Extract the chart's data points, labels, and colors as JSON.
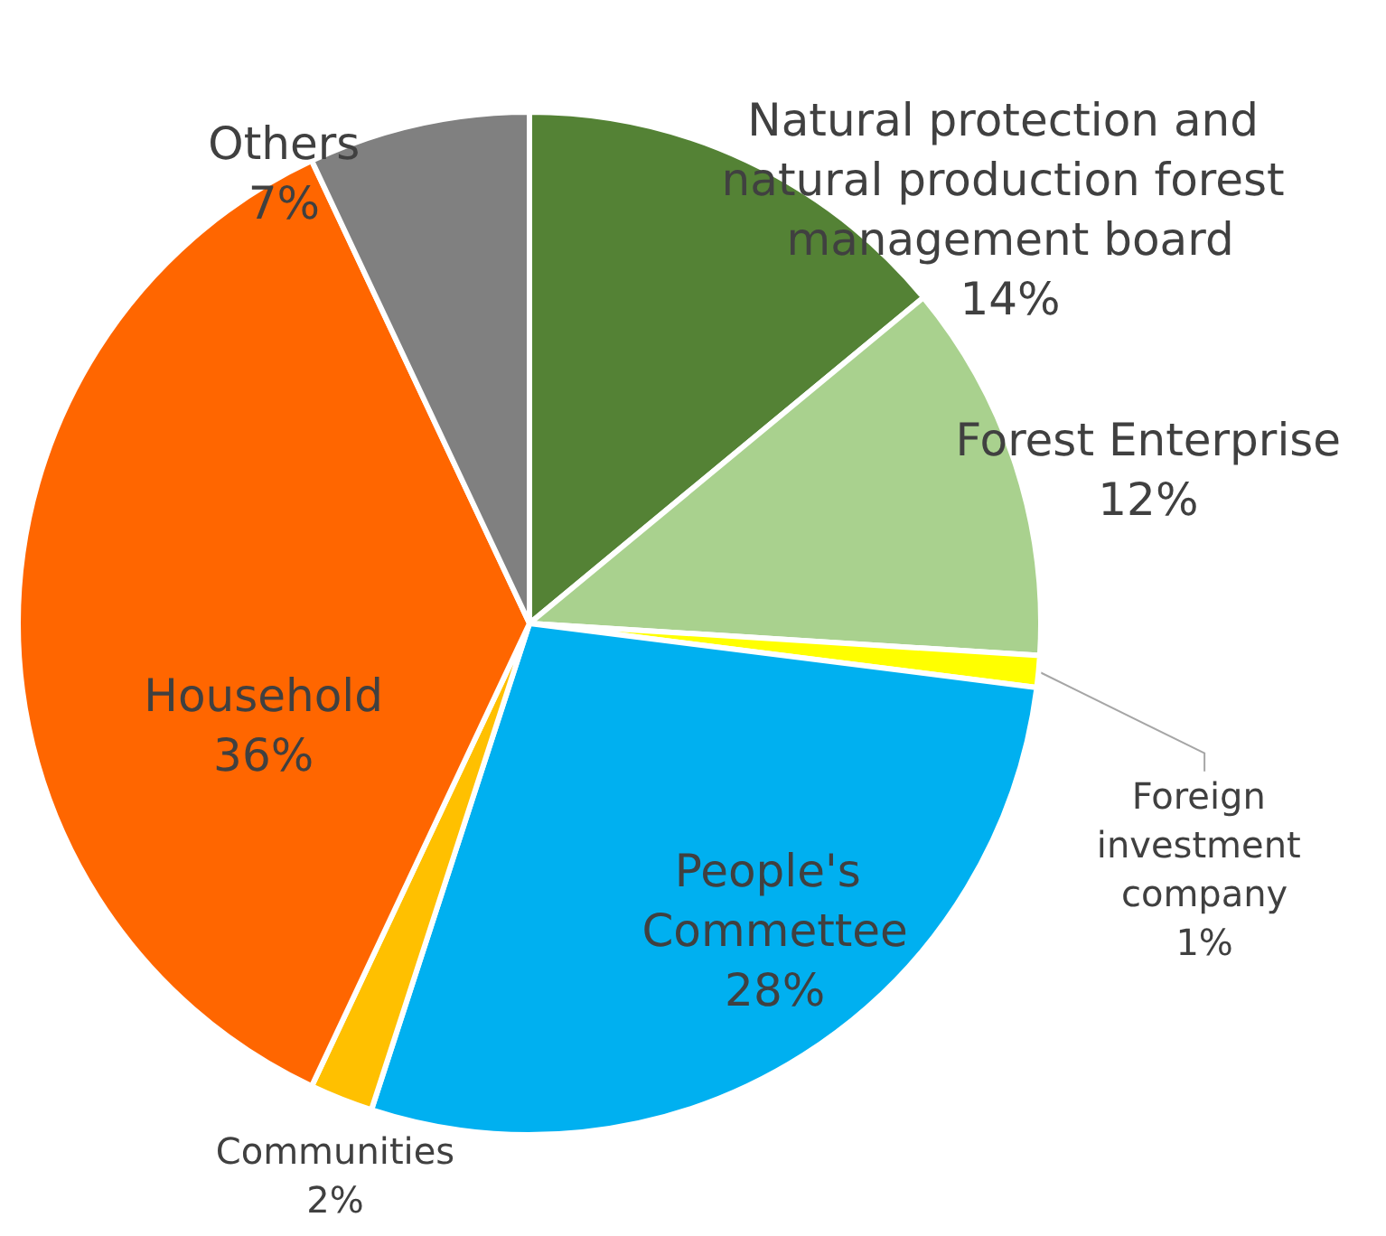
{
  "chart_data": {
    "type": "pie",
    "categories": [
      "Natural protection and natural production forest management board",
      "Forest Enterprise",
      "Foreign investment company",
      "People's Commettee",
      "Communities",
      "Household",
      "Others"
    ],
    "values": [
      14,
      12,
      1,
      28,
      2,
      36,
      7
    ],
    "value_labels": [
      "14%",
      "12%",
      "1%",
      "28%",
      "2%",
      "36%",
      "7%"
    ],
    "colors": [
      "#548235",
      "#a9d18e",
      "#ffff00",
      "#00b0f0",
      "#ffc000",
      "#ff6600",
      "#808080"
    ],
    "legend": false
  }
}
